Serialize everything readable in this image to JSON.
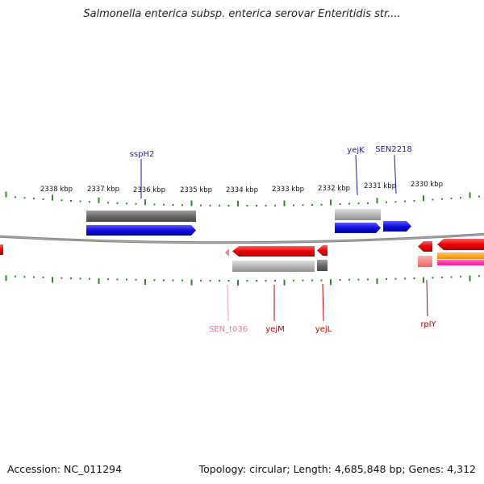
{
  "title": "Salmonella enterica subsp. enterica serovar Enteritidis str....",
  "footer": {
    "accession": "Accession: NC_011294",
    "summary": "Topology: circular; Length: 4,685,848 bp; Genes: 4,312"
  },
  "ruler": {
    "labels": [
      {
        "text": "2338 kbp",
        "pos_kbp": 2338
      },
      {
        "text": "2337 kbp",
        "pos_kbp": 2337
      },
      {
        "text": "2336 kbp",
        "pos_kbp": 2336
      },
      {
        "text": "2335 kbp",
        "pos_kbp": 2335
      },
      {
        "text": "2334 kbp",
        "pos_kbp": 2334
      },
      {
        "text": "2333 kbp",
        "pos_kbp": 2333
      },
      {
        "text": "2332 kbp",
        "pos_kbp": 2332
      },
      {
        "text": "2331 kbp",
        "pos_kbp": 2331
      },
      {
        "text": "2330 kbp",
        "pos_kbp": 2330
      }
    ]
  },
  "gene_labels": [
    {
      "text": "sspH2",
      "strand": "forward",
      "color": "#1a1aa8"
    },
    {
      "text": "yejK",
      "strand": "forward",
      "color": "#1a1aa8"
    },
    {
      "text": "SEN2218",
      "strand": "forward",
      "color": "#1a1aa8"
    },
    {
      "text": "SEN_t036",
      "strand": "reverse",
      "color": "#e87aa0"
    },
    {
      "text": "yejM",
      "strand": "reverse",
      "color": "#c00000"
    },
    {
      "text": "yejL",
      "strand": "reverse",
      "color": "#c00000"
    },
    {
      "text": "rplY",
      "strand": "reverse",
      "color": "#c00000"
    }
  ],
  "colors": {
    "forward_cds": "#1010e0",
    "reverse_cds": "#e80000",
    "gene_gray": "#777777",
    "rna_pink": "#f080b0",
    "tick_green": "#2a8a2a",
    "backbone": "#808080",
    "orange": "#ff8c00",
    "magenta": "#ff1493"
  }
}
